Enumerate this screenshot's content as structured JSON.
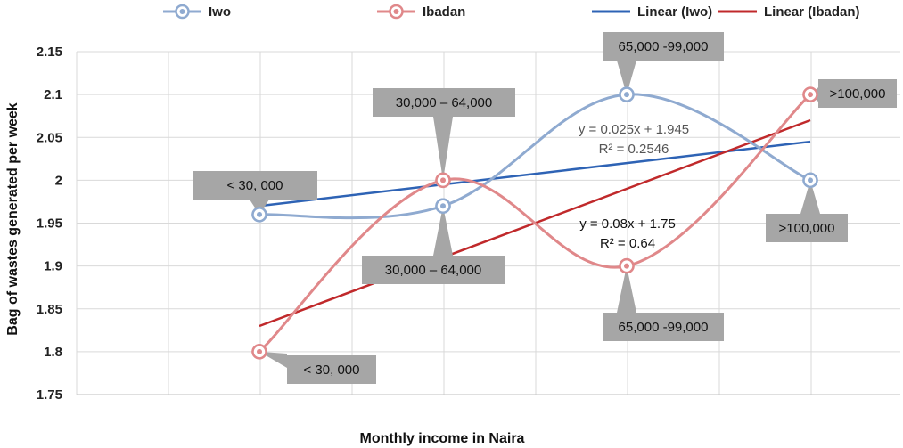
{
  "chart_data": {
    "type": "line",
    "xlabel": "Monthly income in Naira",
    "ylabel": "Bag of wastes generated per week",
    "ylim": [
      1.75,
      2.15
    ],
    "yticks": [
      "1.75",
      "1.8",
      "1.85",
      "1.9",
      "1.95",
      "2",
      "2.05",
      "2.1",
      "2.15"
    ],
    "grid": true,
    "legend_position": "top",
    "categories": [
      "< 30, 000",
      "30,000 – 64,000",
      "65,000 -99,000",
      ">100,000"
    ],
    "series": [
      {
        "name": "Iwo",
        "values": [
          1.96,
          1.97,
          2.1,
          2.0
        ],
        "color": "#8faad0",
        "labels": [
          "< 30, 000",
          "30,000 – 64,000",
          "65,000 -99,000",
          ">100,000"
        ]
      },
      {
        "name": "Ibadan",
        "values": [
          1.8,
          2.0,
          1.9,
          2.1
        ],
        "color": "#e0888a",
        "labels": [
          "< 30, 000",
          "30,000 – 64,000",
          "65,000 -99,000",
          ">100,000"
        ]
      }
    ],
    "trendlines": [
      {
        "name": "Linear (Iwo)",
        "color": "#2e63b5",
        "slope": 0.025,
        "intercept": 1.945,
        "equation": "y = 0.025x + 1.945",
        "r2": "R² = 0.2546"
      },
      {
        "name": "Linear (Ibadan)",
        "color": "#c0292b",
        "slope": 0.08,
        "intercept": 1.75,
        "equation": "y = 0.08x + 1.75",
        "r2": "R² = 0.64"
      }
    ],
    "legend": [
      "Iwo",
      "Ibadan",
      "Linear (Iwo)",
      "Linear (Ibadan)"
    ]
  }
}
